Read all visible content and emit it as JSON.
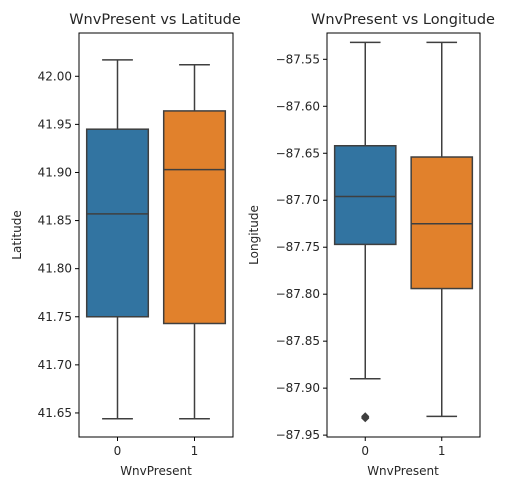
{
  "colors": {
    "group0": "#3274a1",
    "group1": "#e1812c",
    "lines": "#3f3f3f"
  },
  "chart_data": [
    {
      "type": "box",
      "title": "WnvPresent vs Latitude",
      "xlabel": "WnvPresent",
      "ylabel": "Latitude",
      "categories": [
        "0",
        "1"
      ],
      "ylim": [
        41.625,
        42.045
      ],
      "yticks": [
        41.65,
        41.7,
        41.75,
        41.8,
        41.85,
        41.9,
        41.95,
        42.0
      ],
      "ytick_labels": [
        "41.65",
        "41.70",
        "41.75",
        "41.80",
        "41.85",
        "41.90",
        "41.95",
        "42.00"
      ],
      "boxes": [
        {
          "category": "0",
          "whisker_low": 41.644,
          "q1": 41.75,
          "median": 41.857,
          "q3": 41.945,
          "whisker_high": 42.017,
          "outliers": []
        },
        {
          "category": "1",
          "whisker_low": 41.644,
          "q1": 41.743,
          "median": 41.903,
          "q3": 41.964,
          "whisker_high": 42.012,
          "outliers": []
        }
      ]
    },
    {
      "type": "box",
      "title": "WnvPresent vs Longitude",
      "xlabel": "WnvPresent",
      "ylabel": "Longitude",
      "categories": [
        "0",
        "1"
      ],
      "ylim": [
        -87.952,
        -87.522
      ],
      "yticks": [
        -87.95,
        -87.9,
        -87.85,
        -87.8,
        -87.75,
        -87.7,
        -87.65,
        -87.6,
        -87.55
      ],
      "ytick_labels": [
        "−87.95",
        "−87.90",
        "−87.85",
        "−87.80",
        "−87.75",
        "−87.70",
        "−87.65",
        "−87.60",
        "−87.55"
      ],
      "boxes": [
        {
          "category": "0",
          "whisker_low": -87.89,
          "q1": -87.747,
          "median": -87.696,
          "q3": -87.642,
          "whisker_high": -87.532,
          "outliers": [
            -87.93,
            -87.931,
            -87.932
          ]
        },
        {
          "category": "1",
          "whisker_low": -87.93,
          "q1": -87.794,
          "median": -87.725,
          "q3": -87.654,
          "whisker_high": -87.532,
          "outliers": []
        }
      ]
    }
  ]
}
